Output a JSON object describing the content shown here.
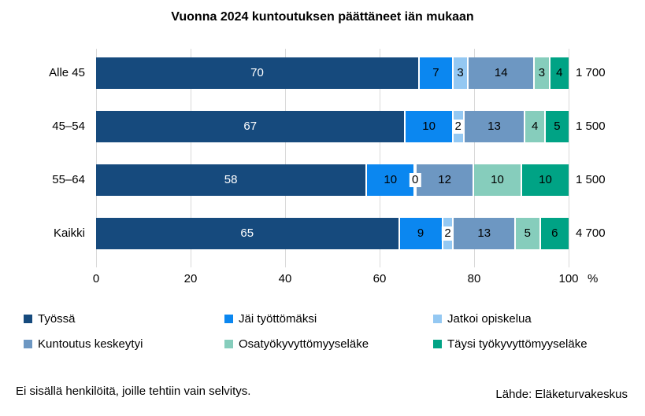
{
  "title": "Vuonna 2024 kuntoutuksen päättäneet iän mukaan",
  "chart_data": {
    "type": "bar",
    "orientation": "horizontal",
    "stacked": true,
    "categories": [
      "Alle 45",
      "45–54",
      "55–64",
      "Kaikki"
    ],
    "series": [
      {
        "name": "Työssä",
        "color": "#164a7d",
        "label_color": "#ffffff",
        "values": [
          70,
          67,
          58,
          65
        ]
      },
      {
        "name": "Jäi työttömäksi",
        "color": "#0b87f0",
        "label_color": "#000000",
        "values": [
          7,
          10,
          10,
          9
        ]
      },
      {
        "name": "Jatkoi opiskelua",
        "color": "#94c8f2",
        "label_color": "#000000",
        "values": [
          3,
          2,
          0,
          2
        ]
      },
      {
        "name": "Kuntoutus keskeytyi",
        "color": "#6d97c2",
        "label_color": "#000000",
        "values": [
          14,
          13,
          12,
          13
        ]
      },
      {
        "name": "Osatyökyvyttömyyseläke",
        "color": "#86cdbc",
        "label_color": "#000000",
        "values": [
          3,
          4,
          10,
          5
        ]
      },
      {
        "name": "Täysi työkyvyttömyyseläke",
        "color": "#00a385",
        "label_color": "#000000",
        "values": [
          4,
          5,
          10,
          6
        ]
      }
    ],
    "totals": [
      "1 700",
      "1 500",
      "1 500",
      "4 700"
    ],
    "xticks": [
      0,
      20,
      40,
      60,
      80,
      100
    ],
    "xlim": [
      0,
      100
    ],
    "x_unit": "%",
    "grid": true,
    "gridline_color": "#d9d9d9",
    "legend_position": "bottom"
  },
  "footer": {
    "note": "Ei sisällä henkilöitä, joille tehtiin vain selvitys.",
    "source": "Lähde: Eläketurvakeskus"
  }
}
